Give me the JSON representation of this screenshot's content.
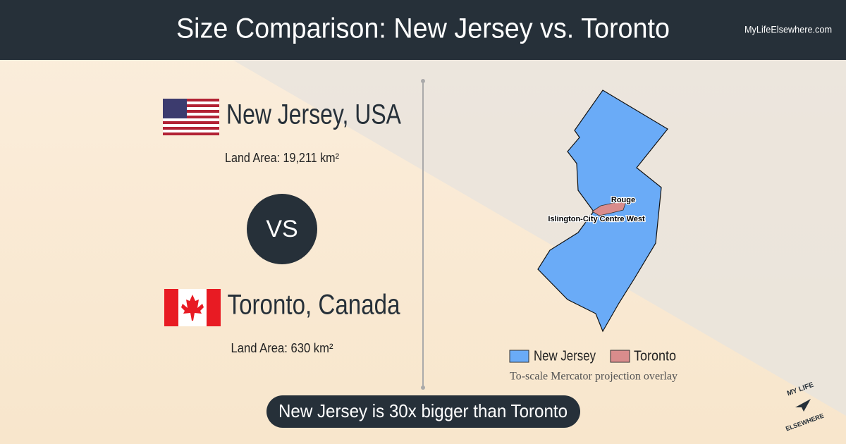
{
  "header": {
    "title": "Size Comparison: New Jersey vs. Toronto",
    "site": "MyLifeElsewhere.com"
  },
  "place1": {
    "name": "New Jersey, USA",
    "area": "Land Area: 19,211 km²"
  },
  "vs": "VS",
  "place2": {
    "name": "Toronto, Canada",
    "area": "Land Area: 630 km²"
  },
  "map": {
    "labels": [
      "Rouge",
      "Islington-City Centre West"
    ],
    "legend": [
      {
        "name": "New Jersey",
        "color": "#6aabf7"
      },
      {
        "name": "Toronto",
        "color": "#d98c8c"
      }
    ],
    "note": "To-scale Mercator projection overlay"
  },
  "summary": "New Jersey is 30x bigger than Toronto",
  "logo": {
    "top": "MY LIFE",
    "bottom": "ELSEWHERE"
  }
}
